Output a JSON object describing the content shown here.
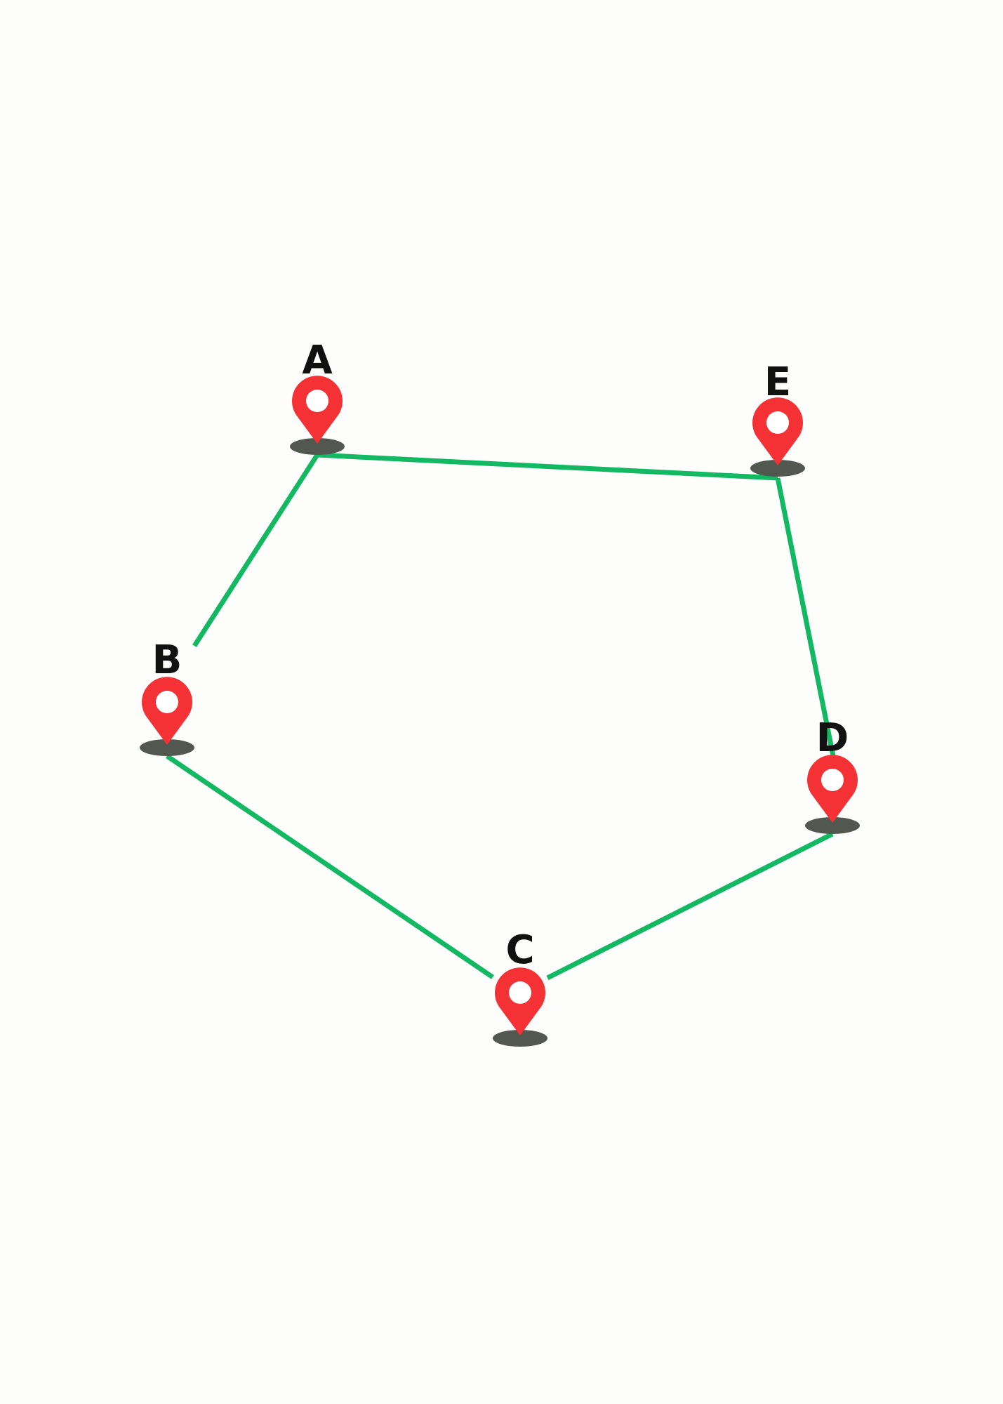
{
  "colors": {
    "background": "#fdfdfb",
    "route": "#12b862",
    "pin": "#f43236",
    "pin_hole": "#ffffff",
    "shadow": "#525750",
    "label": "#111111"
  },
  "icons": {
    "marker": "map-pin-icon"
  },
  "pins": [
    {
      "id": "A",
      "label": "A"
    },
    {
      "id": "B",
      "label": "B"
    },
    {
      "id": "C",
      "label": "C"
    },
    {
      "id": "D",
      "label": "D"
    },
    {
      "id": "E",
      "label": "E"
    }
  ],
  "routes": [
    {
      "from": "A",
      "to": "E"
    },
    {
      "from": "E",
      "to": "D"
    },
    {
      "from": "D",
      "to": "C"
    },
    {
      "from": "C",
      "to": "B"
    },
    {
      "from": "B",
      "to": "A"
    }
  ]
}
